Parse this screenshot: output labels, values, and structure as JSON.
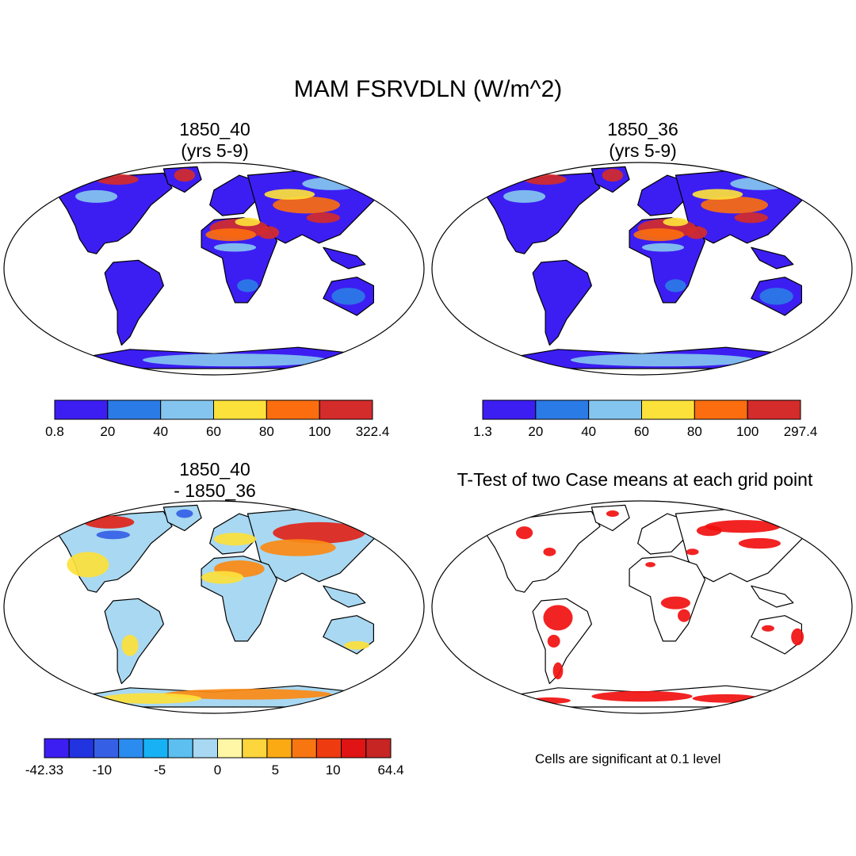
{
  "main_title": "MAM FSRVDLN (W/m^2)",
  "panels": {
    "case1": {
      "title_line1": "1850_40",
      "title_line2": "(yrs 5-9)"
    },
    "case2": {
      "title_line1": "1850_36",
      "title_line2": "(yrs 5-9)"
    },
    "diff": {
      "title_line1": "1850_40",
      "title_line2": "- 1850_36"
    },
    "ttest": {
      "title": "T-Test of two Case means at each grid point",
      "note": "Cells are significant at 0.1 level"
    }
  },
  "colorbars": {
    "case1": {
      "labels": [
        "0.8",
        "20",
        "40",
        "60",
        "80",
        "100",
        "322.4"
      ],
      "colors": [
        "#3c1ef2",
        "#2b7be6",
        "#84c5ef",
        "#fde13b",
        "#fb6d0f",
        "#d42b2b"
      ]
    },
    "case2": {
      "labels": [
        "1.3",
        "20",
        "40",
        "60",
        "80",
        "100",
        "297.4"
      ],
      "colors": [
        "#3c1ef2",
        "#2b7be6",
        "#84c5ef",
        "#fde13b",
        "#fb6d0f",
        "#d42b2b"
      ]
    },
    "diff": {
      "labels": [
        "-42.33",
        "-10",
        "-5",
        "0",
        "5",
        "10",
        "64.4"
      ],
      "colors": [
        "#3c1ef2",
        "#2233e0",
        "#3560e6",
        "#2b8cef",
        "#17b2f5",
        "#5cbff0",
        "#a8d8f2",
        "#fff7a6",
        "#fdd53c",
        "#fbaa14",
        "#f77612",
        "#ef3b10",
        "#e01414",
        "#c72424"
      ]
    }
  },
  "map_colors": {
    "case_land": "#3c1ef2",
    "case_mid": "#2b7be6",
    "case_light": "#84c5ef",
    "case_yellow": "#fde13b",
    "case_orange": "#fb6d0f",
    "case_red": "#d42b2b",
    "diff_base": "#a8d8f2",
    "diff_yellow": "#fde13b",
    "diff_orange": "#fb8a14",
    "diff_red": "#e0241a",
    "diff_blue": "#3560e6",
    "sig_red": "#f11010"
  }
}
